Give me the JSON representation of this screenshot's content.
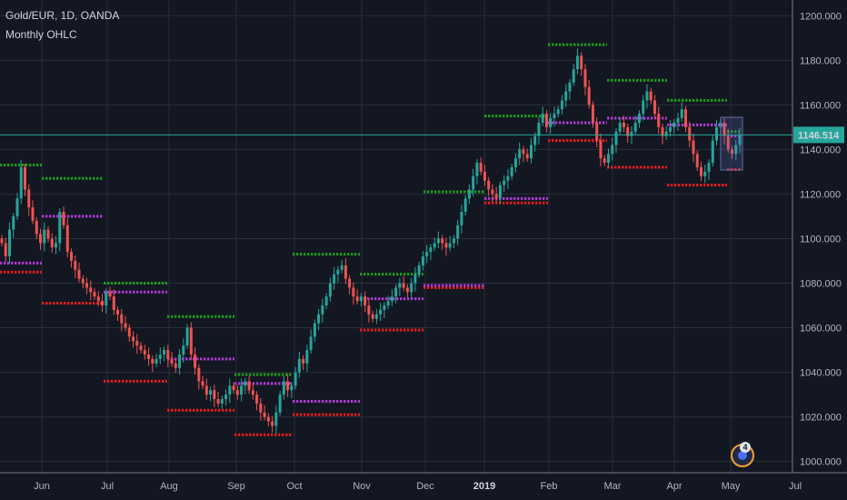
{
  "header": {
    "title": "Gold/EUR, 1D, OANDA",
    "subtitle": "Monthly OHLC"
  },
  "price_tag": {
    "value": "1146.514"
  },
  "badge": {
    "count": "4"
  },
  "chart_data": {
    "type": "candlestick",
    "title": "Gold/EUR, 1D, OANDA",
    "subtitle": "Monthly OHLC",
    "y_range": [
      997,
      1205
    ],
    "y_ticks": [
      "1000.000",
      "1020.000",
      "1040.000",
      "1060.000",
      "1080.000",
      "1100.000",
      "1120.000",
      "1140.000",
      "1160.000",
      "1180.000",
      "1200.000"
    ],
    "x_ticks": [
      "Jun",
      "Jul",
      "Aug",
      "Sep",
      "Oct",
      "Nov",
      "Dec",
      "2019",
      "Feb",
      "Mar",
      "Apr",
      "May",
      "Jul"
    ],
    "last_price": 1146.514,
    "candle_closes": [
      1098,
      1092,
      1104,
      1110,
      1118,
      1132,
      1122,
      1114,
      1108,
      1102,
      1098,
      1104,
      1100,
      1096,
      1098,
      1112,
      1106,
      1094,
      1090,
      1086,
      1082,
      1080,
      1078,
      1076,
      1074,
      1072,
      1070,
      1076,
      1074,
      1068,
      1066,
      1062,
      1060,
      1056,
      1054,
      1052,
      1050,
      1048,
      1046,
      1044,
      1046,
      1048,
      1050,
      1046,
      1044,
      1042,
      1048,
      1052,
      1060,
      1048,
      1042,
      1036,
      1034,
      1030,
      1032,
      1028,
      1026,
      1028,
      1030,
      1034,
      1032,
      1030,
      1034,
      1036,
      1032,
      1030,
      1026,
      1022,
      1020,
      1018,
      1016,
      1022,
      1030,
      1036,
      1032,
      1034,
      1040,
      1046,
      1044,
      1050,
      1056,
      1062,
      1066,
      1070,
      1074,
      1080,
      1084,
      1086,
      1088,
      1082,
      1078,
      1074,
      1072,
      1074,
      1070,
      1066,
      1064,
      1066,
      1068,
      1070,
      1072,
      1074,
      1078,
      1080,
      1078,
      1076,
      1080,
      1084,
      1088,
      1092,
      1094,
      1096,
      1098,
      1100,
      1098,
      1096,
      1098,
      1100,
      1106,
      1112,
      1118,
      1122,
      1128,
      1134,
      1130,
      1126,
      1122,
      1120,
      1118,
      1124,
      1126,
      1128,
      1132,
      1136,
      1140,
      1138,
      1136,
      1142,
      1146,
      1152,
      1156,
      1150,
      1154,
      1156,
      1158,
      1162,
      1166,
      1170,
      1176,
      1182,
      1176,
      1168,
      1160,
      1152,
      1144,
      1136,
      1134,
      1138,
      1142,
      1148,
      1152,
      1150,
      1146,
      1148,
      1152,
      1156,
      1162,
      1166,
      1162,
      1156,
      1150,
      1146,
      1148,
      1150,
      1152,
      1154,
      1158,
      1150,
      1144,
      1138,
      1132,
      1128,
      1130,
      1134,
      1144,
      1150,
      1152,
      1146,
      1140,
      1138,
      1142,
      1146.514
    ],
    "monthly_levels": [
      {
        "month": "Jun",
        "open": 1089,
        "high": 1133,
        "low": 1085
      },
      {
        "month": "Jul",
        "open": 1110,
        "high": 1127,
        "low": 1071
      },
      {
        "month": "Aug",
        "open": 1076,
        "high": 1080,
        "low": 1036
      },
      {
        "month": "Sep",
        "open": 1046,
        "high": 1065,
        "low": 1023
      },
      {
        "month": "Oct",
        "open": 1035,
        "high": 1039,
        "low": 1012
      },
      {
        "month": "Nov",
        "open": 1027,
        "high": 1093,
        "low": 1021
      },
      {
        "month": "Dec",
        "open": 1073,
        "high": 1084,
        "low": 1059
      },
      {
        "month": "2019",
        "open": 1079,
        "high": 1121,
        "low": 1078
      },
      {
        "month": "Feb",
        "open": 1118,
        "high": 1155,
        "low": 1116
      },
      {
        "month": "Mar",
        "open": 1152,
        "high": 1187,
        "low": 1144
      },
      {
        "month": "Apr",
        "open": 1154,
        "high": 1171,
        "low": 1132
      },
      {
        "month": "May",
        "open": 1151,
        "high": 1162,
        "low": 1124
      },
      {
        "month": "Jun",
        "open": 1146,
        "high": 1148,
        "low": 1131
      }
    ],
    "colors": {
      "up": "#26a69a",
      "down": "#ef5350",
      "high_line": "#1e9c1e",
      "low_line": "#e81c1c",
      "open_line": "#b03ad6",
      "price_line": "#26a69a",
      "background": "#131722",
      "grid": "#2a2e39"
    }
  }
}
